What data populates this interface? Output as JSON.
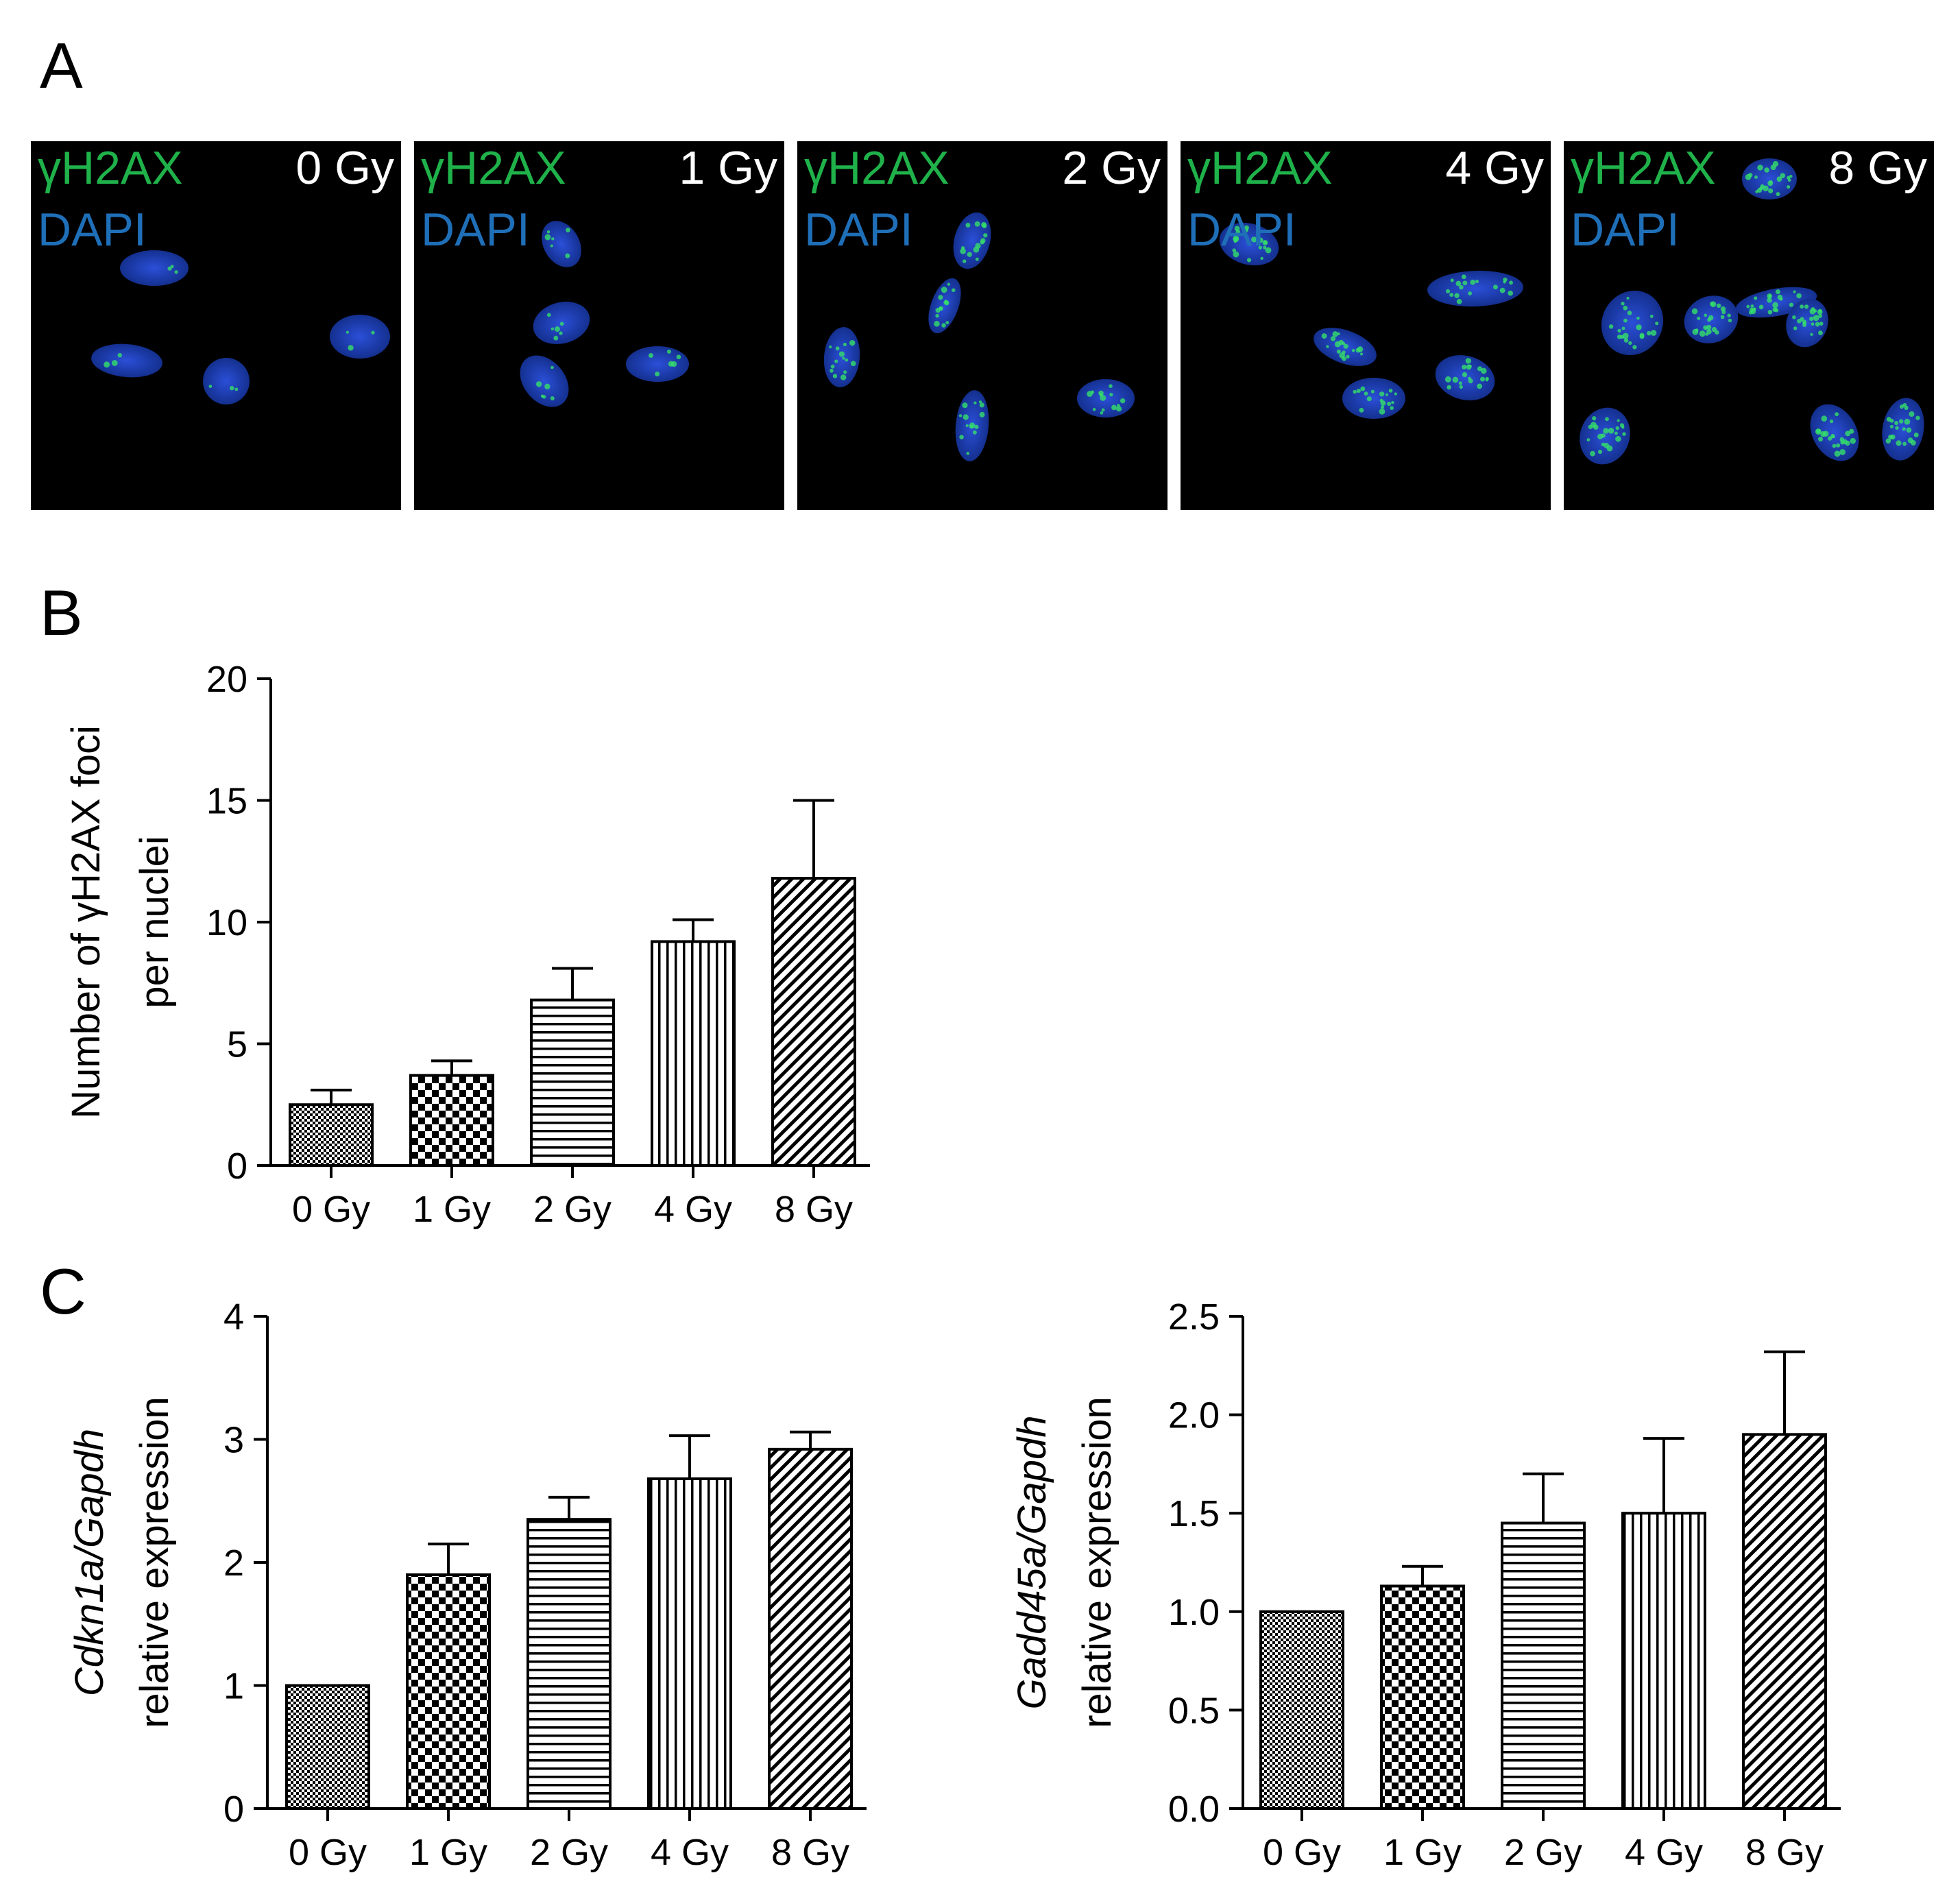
{
  "panel_labels": {
    "a": "A",
    "b": "B",
    "c": "C"
  },
  "micrographs": {
    "stain_green": "γH2AX",
    "stain_blue": "DAPI",
    "colors": {
      "green": "#20b24a",
      "blue": "#1f6fb8",
      "nucleus": "#1a3fb0"
    },
    "doses": [
      "0 Gy",
      "1 Gy",
      "2 Gy",
      "4 Gy",
      "8 Gy"
    ]
  },
  "chart_data": [
    {
      "id": "B",
      "type": "bar",
      "categories": [
        "0 Gy",
        "1 Gy",
        "2 Gy",
        "4 Gy",
        "8 Gy"
      ],
      "values": [
        2.5,
        3.7,
        6.8,
        9.2,
        11.8
      ],
      "errors": [
        0.6,
        0.6,
        1.3,
        0.9,
        3.2
      ],
      "ylim": [
        0,
        20
      ],
      "yticks": [
        0,
        5,
        10,
        15,
        20
      ],
      "ylabel_line1": "Number of γH2AX foci",
      "ylabel_line2": "per nuclei",
      "patterns": [
        "fine-checker",
        "checker",
        "horizontal",
        "vertical",
        "diagonal"
      ],
      "grid": false
    },
    {
      "id": "C1",
      "type": "bar",
      "categories": [
        "0 Gy",
        "1 Gy",
        "2 Gy",
        "4 Gy",
        "8 Gy"
      ],
      "values": [
        1.0,
        1.9,
        2.35,
        2.68,
        2.92
      ],
      "errors": [
        0,
        0.25,
        0.18,
        0.35,
        0.14
      ],
      "ylim": [
        0,
        4
      ],
      "yticks": [
        0,
        1,
        2,
        3,
        4
      ],
      "ylabel_line1": "Cdkn1a/Gapdh",
      "ylabel_line2": "relative expression",
      "patterns": [
        "fine-checker",
        "checker",
        "horizontal",
        "vertical",
        "diagonal"
      ],
      "grid": false
    },
    {
      "id": "C2",
      "type": "bar",
      "categories": [
        "0 Gy",
        "1 Gy",
        "2 Gy",
        "4 Gy",
        "8 Gy"
      ],
      "values": [
        1.0,
        1.13,
        1.45,
        1.5,
        1.9
      ],
      "errors": [
        0,
        0.1,
        0.25,
        0.38,
        0.42
      ],
      "ylim": [
        0,
        2.5
      ],
      "yticks": [
        "0.0",
        "0.5",
        "1.0",
        "1.5",
        "2.0",
        "2.5"
      ],
      "ylabel_line1": "Gadd45a/Gapdh",
      "ylabel_line2": "relative expression",
      "patterns": [
        "fine-checker",
        "checker",
        "horizontal",
        "vertical",
        "diagonal"
      ],
      "grid": false
    }
  ]
}
